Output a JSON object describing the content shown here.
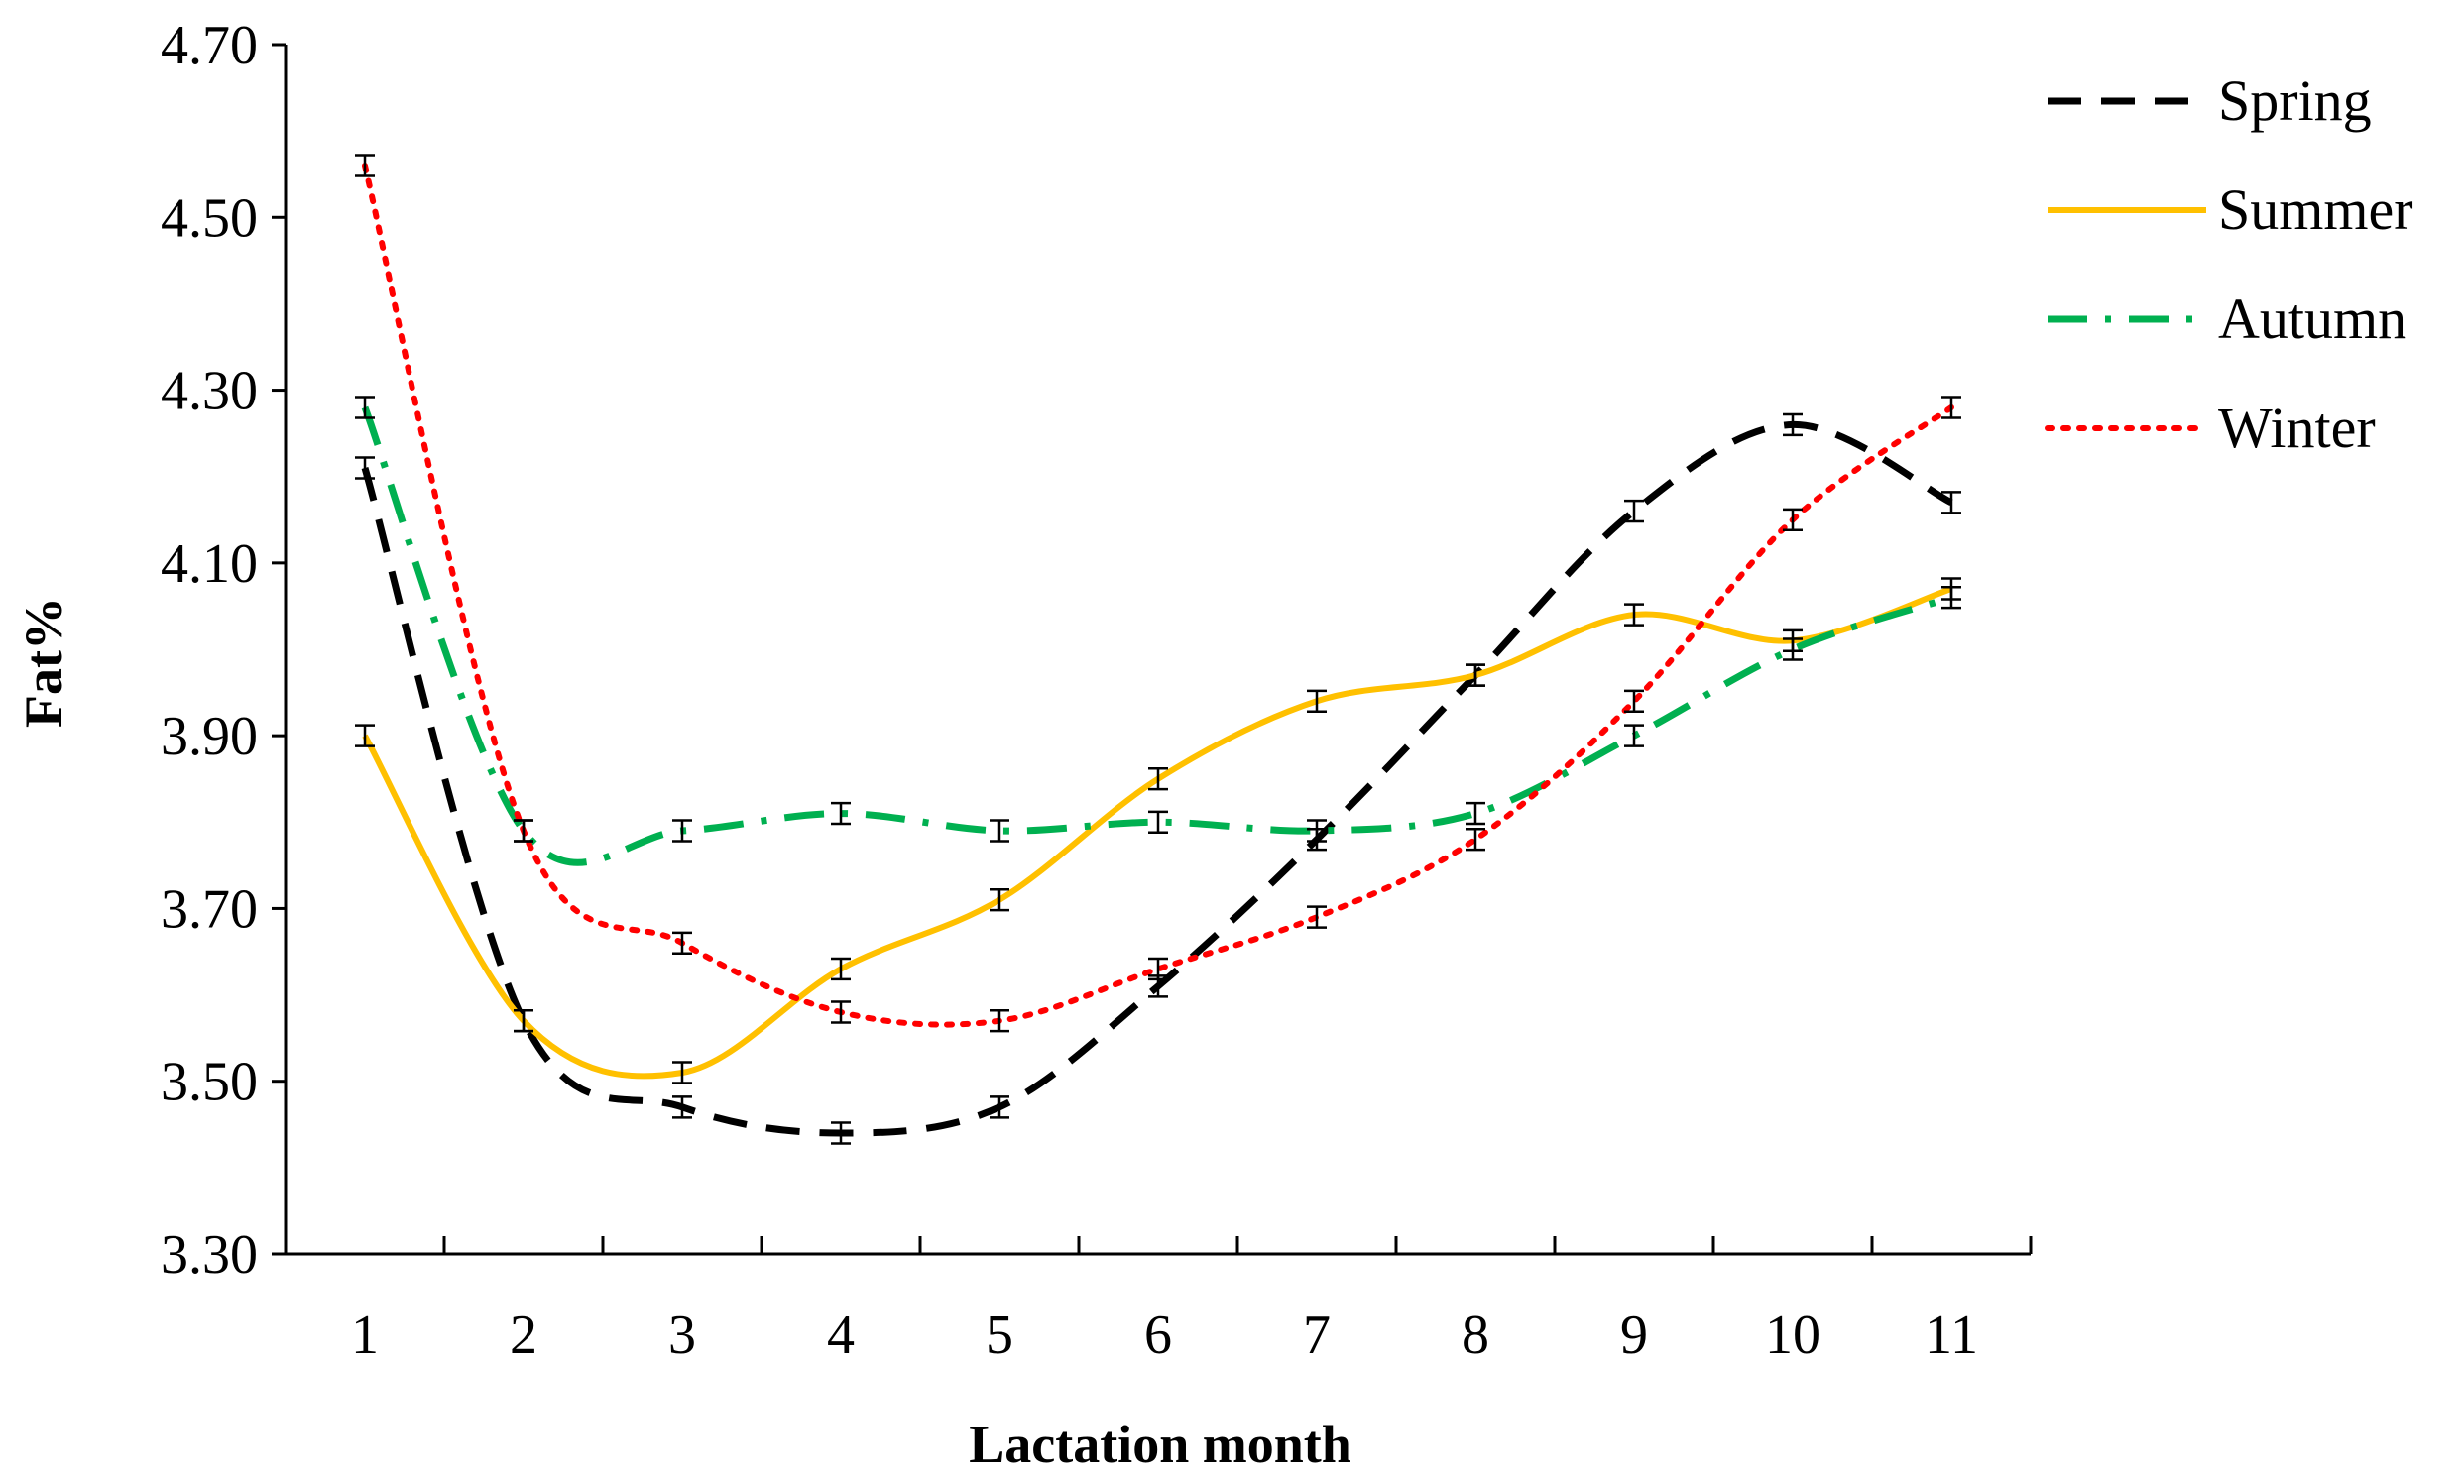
{
  "chart_data": {
    "type": "line",
    "title": "",
    "xlabel": "Lactation month",
    "ylabel": "Fat%",
    "categories": [
      "1",
      "2",
      "3",
      "4",
      "5",
      "6",
      "7",
      "8",
      "9",
      "10",
      "11"
    ],
    "ylim": [
      3.3,
      4.7
    ],
    "yticks": [
      "3.30",
      "3.50",
      "3.70",
      "3.90",
      "4.10",
      "4.30",
      "4.50",
      "4.70"
    ],
    "grid": false,
    "legend_position": "top-right",
    "error_bar_halfwidth": 0.012,
    "series": [
      {
        "name": "Spring",
        "color": "#000000",
        "dash": "dashed",
        "values": [
          4.21,
          3.57,
          3.47,
          3.44,
          3.47,
          3.61,
          3.78,
          3.97,
          4.16,
          4.26,
          4.17
        ]
      },
      {
        "name": "Summer",
        "color": "#FFC000",
        "dash": "solid",
        "values": [
          3.9,
          3.57,
          3.51,
          3.63,
          3.71,
          3.85,
          3.94,
          3.97,
          4.04,
          4.01,
          4.07
        ]
      },
      {
        "name": "Autumn",
        "color": "#00B050",
        "dash": "dashdot",
        "values": [
          4.28,
          3.79,
          3.79,
          3.81,
          3.79,
          3.8,
          3.79,
          3.81,
          3.9,
          4.0,
          4.06
        ]
      },
      {
        "name": "Winter",
        "color": "#FF0000",
        "dash": "dotted",
        "values": [
          4.56,
          3.79,
          3.66,
          3.58,
          3.57,
          3.63,
          3.69,
          3.78,
          3.94,
          4.15,
          4.28
        ]
      }
    ]
  }
}
